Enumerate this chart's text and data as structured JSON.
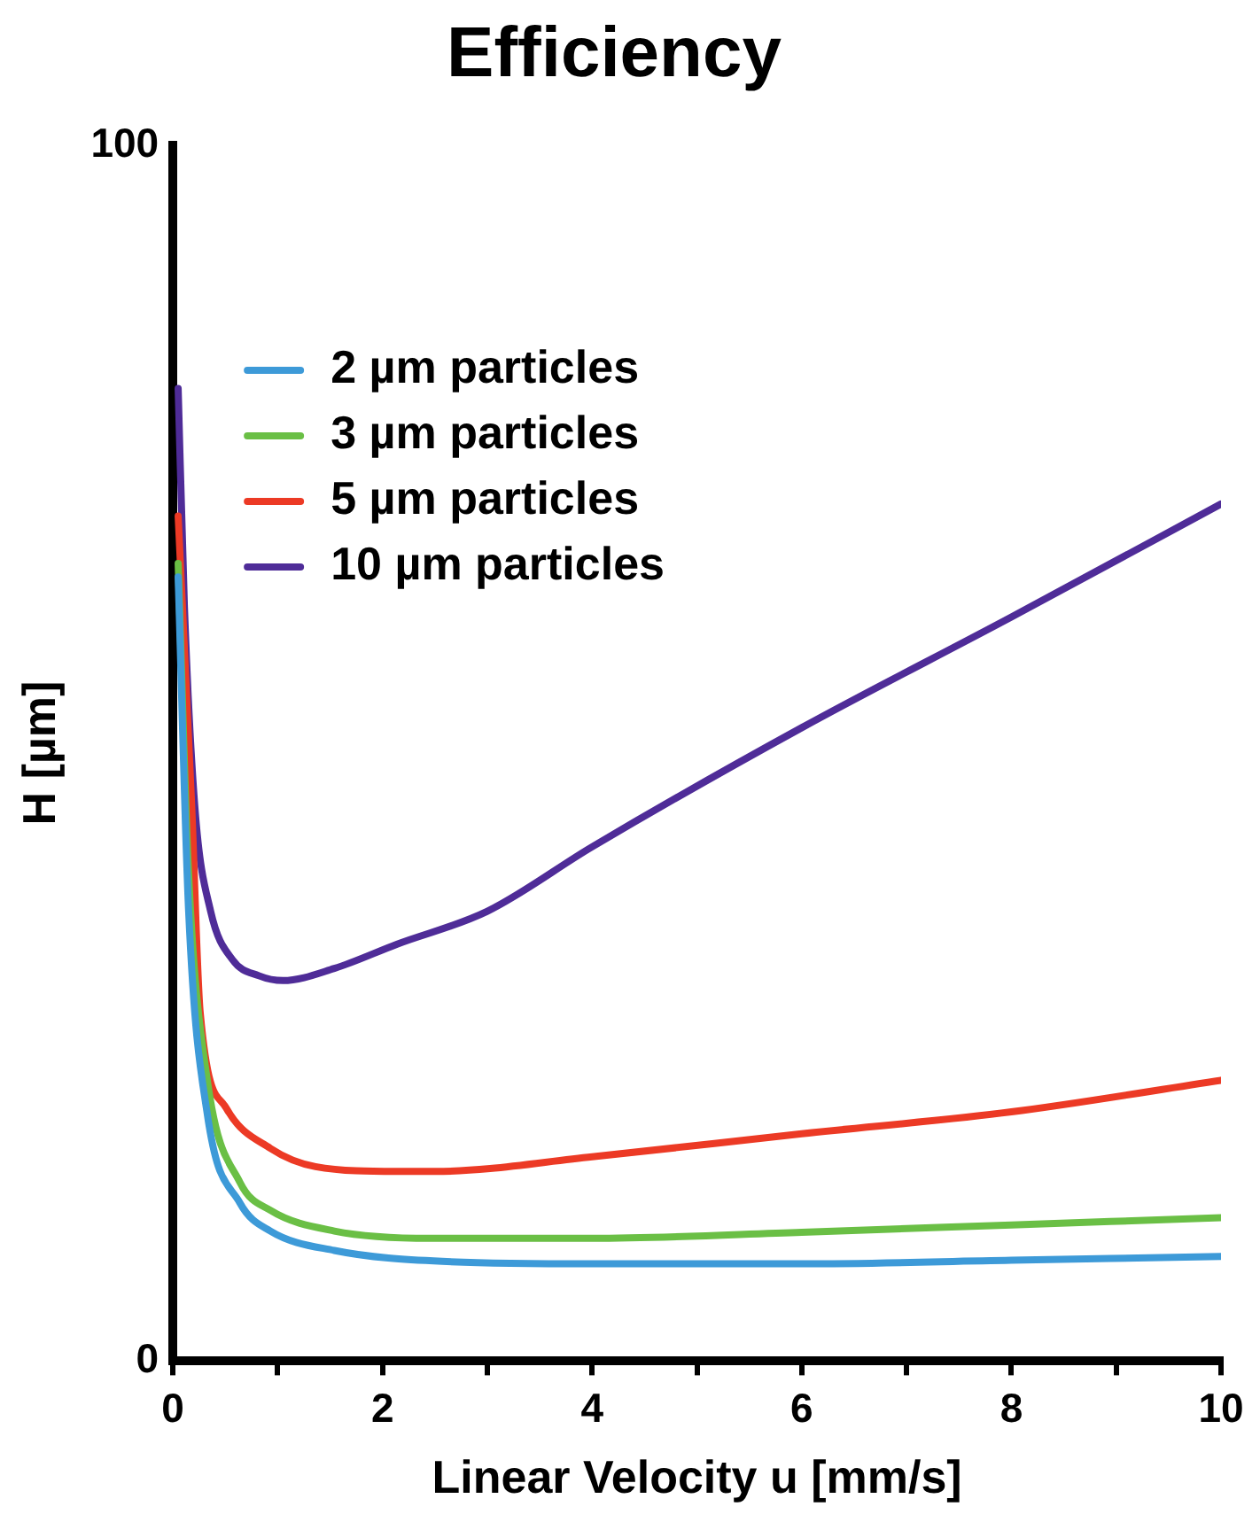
{
  "chart_data": {
    "type": "line",
    "title": "Efficiency",
    "xlabel": "Linear Velocity u [mm/s]",
    "ylabel": "H [µm]",
    "xlim": [
      0,
      10
    ],
    "ylim": [
      0,
      100
    ],
    "xticks": [
      0,
      {
        "value": 1,
        "label": null
      },
      2,
      {
        "value": 3,
        "label": null
      },
      4,
      {
        "value": 5,
        "label": null
      },
      6,
      {
        "value": 7,
        "label": null
      },
      8,
      {
        "value": 9,
        "label": null
      },
      10
    ],
    "yticks": [
      0,
      100
    ],
    "grid": false,
    "legend": "top left",
    "marker": "none",
    "line_style": "solid",
    "series": [
      {
        "name": "2 µm particles",
        "color": "#3d9ad8",
        "x": [
          0.05,
          0.15,
          0.33,
          0.64,
          0.93,
          1.54,
          2.57,
          4,
          6,
          8,
          10
        ],
        "values": [
          64.5,
          37,
          20.2,
          13,
          10.7,
          9.1,
          8.2,
          8,
          8,
          8.3,
          8.6
        ]
      },
      {
        "name": "3 µm particles",
        "color": "#6abf45",
        "x": [
          0.05,
          0.15,
          0.33,
          0.64,
          0.93,
          1.54,
          2.46,
          4,
          6,
          8,
          10
        ],
        "values": [
          65.6,
          40,
          23,
          14.7,
          12.4,
          10.7,
          10.1,
          10.1,
          10.6,
          11.2,
          11.8
        ]
      },
      {
        "name": "5 µm particles",
        "color": "#ec3a25",
        "x": [
          0.05,
          0.18,
          0.26,
          0.51,
          0.93,
          1.36,
          2.14,
          2.5,
          4,
          6,
          8,
          10
        ],
        "values": [
          69.5,
          45.5,
          28.7,
          20.8,
          17.5,
          16,
          15.6,
          15.6,
          16.8,
          18.7,
          20.5,
          23.1
        ]
      },
      {
        "name": "10 µm particles",
        "color": "#4f2c98",
        "x": [
          0.05,
          0.11,
          0.21,
          0.36,
          0.57,
          0.82,
          1.05,
          1.54,
          2.14,
          3,
          4,
          6,
          8,
          10
        ],
        "values": [
          80,
          62,
          45.5,
          37,
          33,
          31.7,
          31.3,
          32.3,
          34.3,
          37,
          42.3,
          52.1,
          61.2,
          70.5
        ]
      }
    ]
  }
}
